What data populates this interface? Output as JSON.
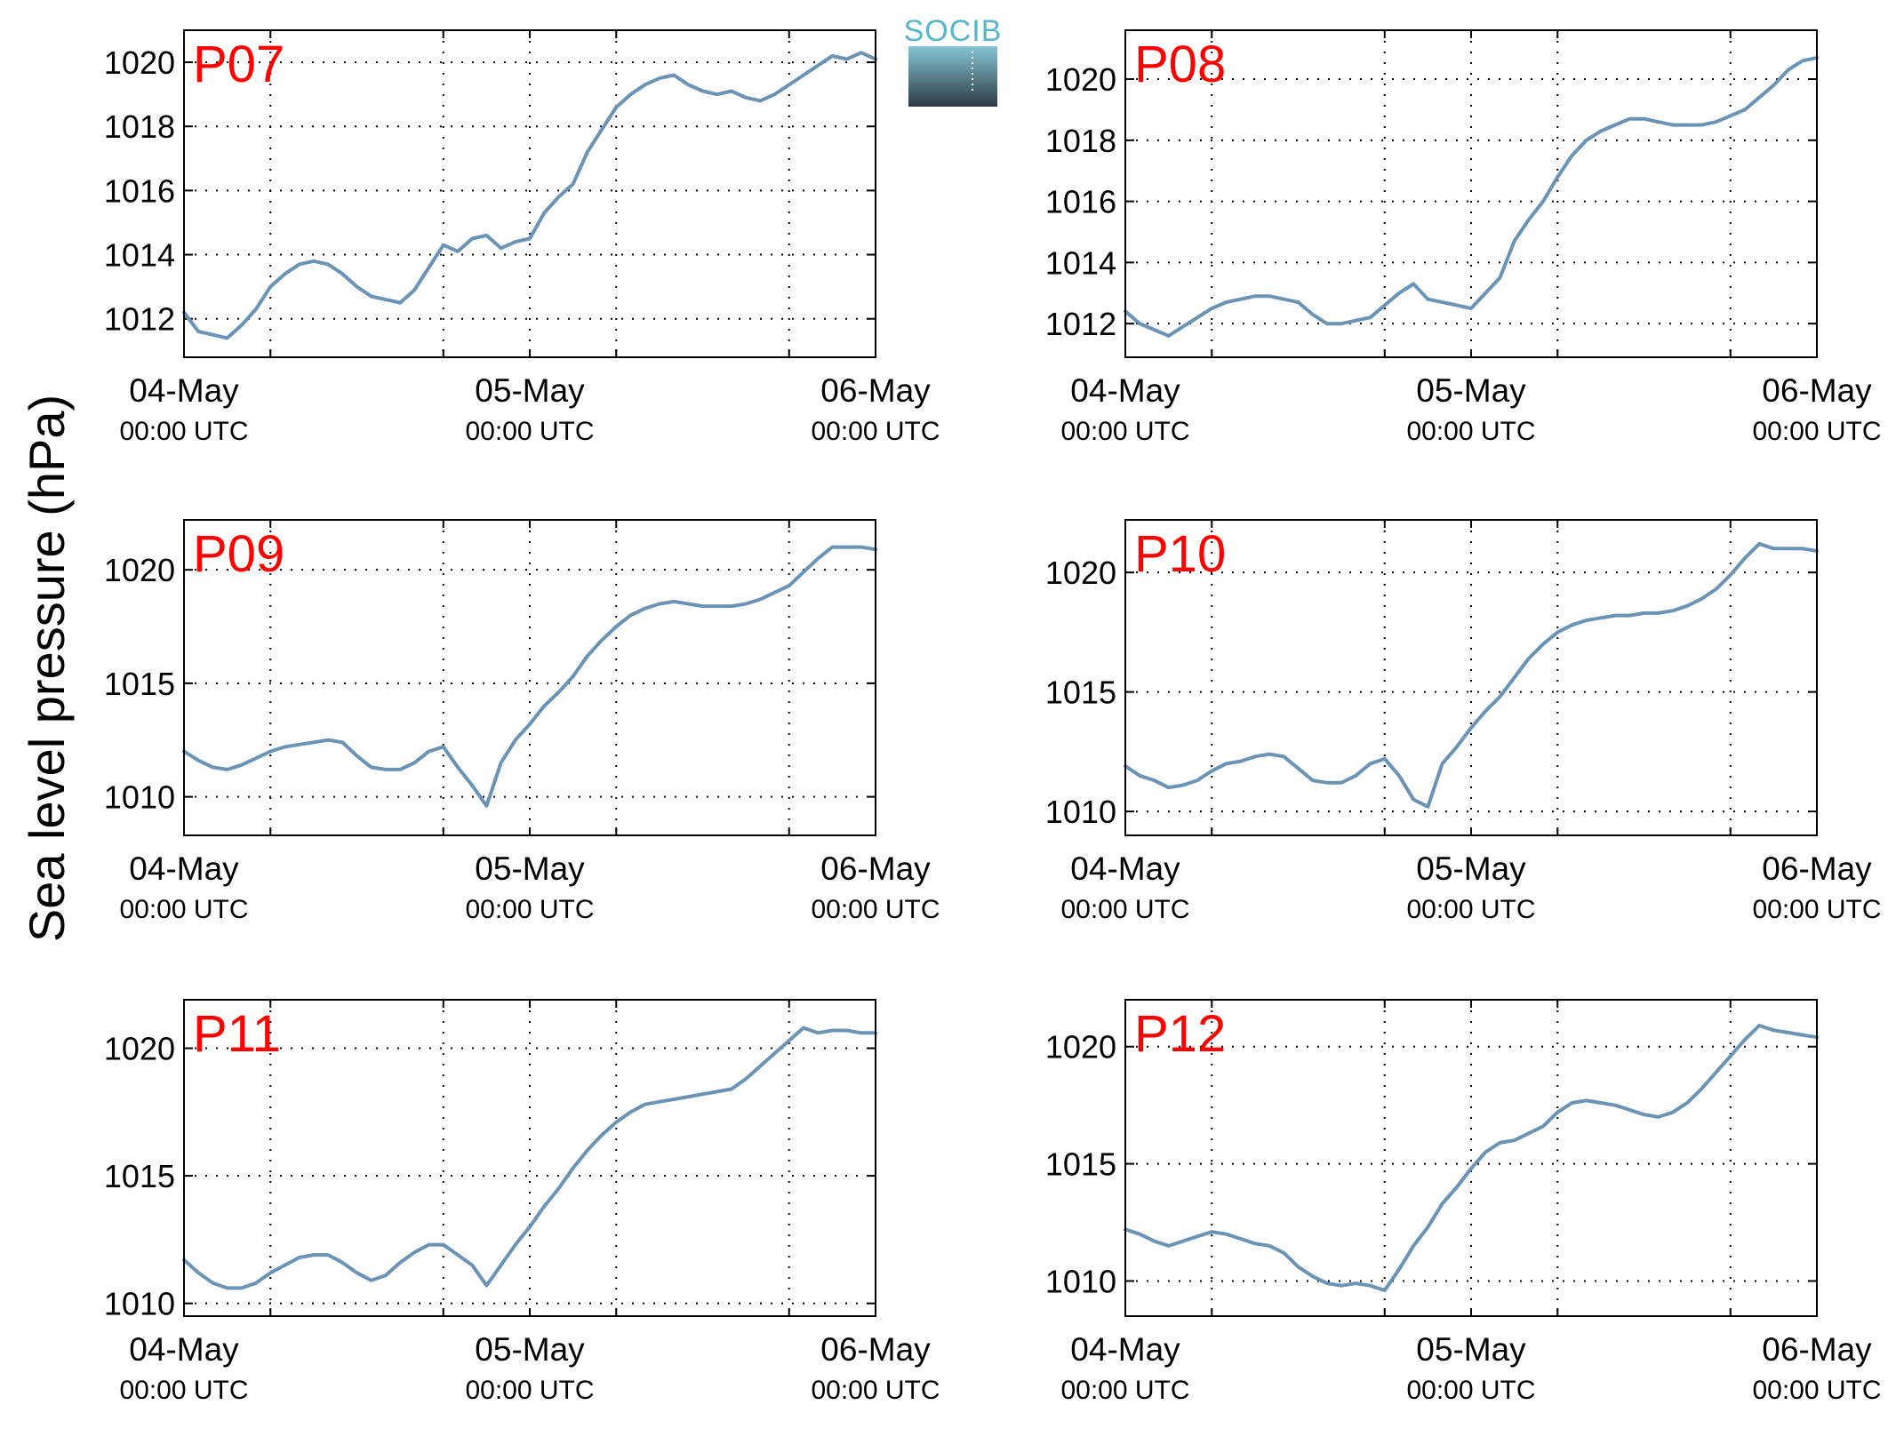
{
  "figure": {
    "ylabel": "Sea level pressure (hPa)",
    "logo_text": "SOCIB",
    "line_color": "#6b93b5",
    "station_label_color": "#ff0000",
    "logo_colors": {
      "text": "#59b5c8",
      "gradient_top": "#86c6d3",
      "gradient_bottom": "#2c3a45"
    }
  },
  "chart_data": [
    {
      "type": "line",
      "title": "P07",
      "x_tick_labels": [
        {
          "date": "04-May",
          "time": "00:00 UTC"
        },
        {
          "date": "05-May",
          "time": "00:00 UTC"
        },
        {
          "date": "06-May",
          "time": "00:00 UTC"
        }
      ],
      "xlim": [
        0,
        48
      ],
      "ylim": [
        1010.8,
        1021.0
      ],
      "yticks": [
        1012,
        1014,
        1016,
        1018,
        1020
      ],
      "grid": true,
      "series": [
        {
          "x": [
            0,
            1,
            2,
            3,
            4,
            5,
            6,
            7,
            8,
            9,
            10,
            11,
            12,
            13,
            14,
            15,
            16,
            17,
            18,
            19,
            20,
            21,
            22,
            23,
            24,
            25,
            26,
            27,
            28,
            29,
            30,
            31,
            32,
            33,
            34,
            35,
            36,
            37,
            38,
            39,
            40,
            41,
            42,
            43,
            44,
            45,
            46,
            47,
            48
          ],
          "y": [
            1012.2,
            1011.6,
            1011.5,
            1011.4,
            1011.8,
            1012.3,
            1013.0,
            1013.4,
            1013.7,
            1013.8,
            1013.7,
            1013.4,
            1013.0,
            1012.7,
            1012.6,
            1012.5,
            1012.9,
            1013.6,
            1014.3,
            1014.1,
            1014.5,
            1014.6,
            1014.2,
            1014.4,
            1014.5,
            1015.3,
            1015.8,
            1016.2,
            1017.2,
            1017.9,
            1018.6,
            1019.0,
            1019.3,
            1019.5,
            1019.6,
            1019.3,
            1019.1,
            1019.0,
            1019.1,
            1018.9,
            1018.8,
            1019.0,
            1019.3,
            1019.6,
            1019.9,
            1020.2,
            1020.1,
            1020.3,
            1020.1
          ]
        }
      ]
    },
    {
      "type": "line",
      "title": "P08",
      "x_tick_labels": [
        {
          "date": "04-May",
          "time": "00:00 UTC"
        },
        {
          "date": "05-May",
          "time": "00:00 UTC"
        },
        {
          "date": "06-May",
          "time": "00:00 UTC"
        }
      ],
      "xlim": [
        0,
        48
      ],
      "ylim": [
        1010.9,
        1021.6
      ],
      "yticks": [
        1012,
        1014,
        1016,
        1018,
        1020
      ],
      "grid": true,
      "series": [
        {
          "x": [
            0,
            1,
            2,
            3,
            4,
            5,
            6,
            7,
            8,
            9,
            10,
            11,
            12,
            13,
            14,
            15,
            16,
            17,
            18,
            19,
            20,
            21,
            22,
            23,
            24,
            25,
            26,
            27,
            28,
            29,
            30,
            31,
            32,
            33,
            34,
            35,
            36,
            37,
            38,
            39,
            40,
            41,
            42,
            43,
            44,
            45,
            46,
            47,
            48
          ],
          "y": [
            1012.4,
            1012.0,
            1011.8,
            1011.6,
            1011.9,
            1012.2,
            1012.5,
            1012.7,
            1012.8,
            1012.9,
            1012.9,
            1012.8,
            1012.7,
            1012.3,
            1012.0,
            1012.0,
            1012.1,
            1012.2,
            1012.6,
            1013.0,
            1013.3,
            1012.8,
            1012.7,
            1012.6,
            1012.5,
            1013.0,
            1013.5,
            1014.7,
            1015.4,
            1016.0,
            1016.8,
            1017.5,
            1018.0,
            1018.3,
            1018.5,
            1018.7,
            1018.7,
            1018.6,
            1018.5,
            1018.5,
            1018.5,
            1018.6,
            1018.8,
            1019.0,
            1019.4,
            1019.8,
            1020.3,
            1020.6,
            1020.7
          ]
        }
      ]
    },
    {
      "type": "line",
      "title": "P09",
      "x_tick_labels": [
        {
          "date": "04-May",
          "time": "00:00 UTC"
        },
        {
          "date": "05-May",
          "time": "00:00 UTC"
        },
        {
          "date": "06-May",
          "time": "00:00 UTC"
        }
      ],
      "xlim": [
        0,
        48
      ],
      "ylim": [
        1008.3,
        1022.2
      ],
      "yticks": [
        1010,
        1015,
        1020
      ],
      "grid": true,
      "series": [
        {
          "x": [
            0,
            1,
            2,
            3,
            4,
            5,
            6,
            7,
            8,
            9,
            10,
            11,
            12,
            13,
            14,
            15,
            16,
            17,
            18,
            19,
            20,
            21,
            22,
            23,
            24,
            25,
            26,
            27,
            28,
            29,
            30,
            31,
            32,
            33,
            34,
            35,
            36,
            37,
            38,
            39,
            40,
            41,
            42,
            43,
            44,
            45,
            46,
            47,
            48
          ],
          "y": [
            1012.0,
            1011.6,
            1011.3,
            1011.2,
            1011.4,
            1011.7,
            1012.0,
            1012.2,
            1012.3,
            1012.4,
            1012.5,
            1012.4,
            1011.8,
            1011.3,
            1011.2,
            1011.2,
            1011.5,
            1012.0,
            1012.2,
            1011.3,
            1010.5,
            1009.6,
            1011.5,
            1012.5,
            1013.2,
            1014.0,
            1014.6,
            1015.3,
            1016.2,
            1016.9,
            1017.5,
            1018.0,
            1018.3,
            1018.5,
            1018.6,
            1018.5,
            1018.4,
            1018.4,
            1018.4,
            1018.5,
            1018.7,
            1019.0,
            1019.3,
            1019.9,
            1020.5,
            1021.0,
            1021.0,
            1021.0,
            1020.9
          ]
        }
      ]
    },
    {
      "type": "line",
      "title": "P10",
      "x_tick_labels": [
        {
          "date": "04-May",
          "time": "00:00 UTC"
        },
        {
          "date": "05-May",
          "time": "00:00 UTC"
        },
        {
          "date": "06-May",
          "time": "00:00 UTC"
        }
      ],
      "xlim": [
        0,
        48
      ],
      "ylim": [
        1009.0,
        1022.2
      ],
      "yticks": [
        1010,
        1015,
        1020
      ],
      "grid": true,
      "series": [
        {
          "x": [
            0,
            1,
            2,
            3,
            4,
            5,
            6,
            7,
            8,
            9,
            10,
            11,
            12,
            13,
            14,
            15,
            16,
            17,
            18,
            19,
            20,
            21,
            22,
            23,
            24,
            25,
            26,
            27,
            28,
            29,
            30,
            31,
            32,
            33,
            34,
            35,
            36,
            37,
            38,
            39,
            40,
            41,
            42,
            43,
            44,
            45,
            46,
            47,
            48
          ],
          "y": [
            1011.9,
            1011.5,
            1011.3,
            1011.0,
            1011.1,
            1011.3,
            1011.7,
            1012.0,
            1012.1,
            1012.3,
            1012.4,
            1012.3,
            1011.8,
            1011.3,
            1011.2,
            1011.2,
            1011.5,
            1012.0,
            1012.2,
            1011.5,
            1010.5,
            1010.2,
            1012.0,
            1012.7,
            1013.5,
            1014.2,
            1014.8,
            1015.6,
            1016.4,
            1017.0,
            1017.5,
            1017.8,
            1018.0,
            1018.1,
            1018.2,
            1018.2,
            1018.3,
            1018.3,
            1018.4,
            1018.6,
            1018.9,
            1019.3,
            1019.9,
            1020.6,
            1021.2,
            1021.0,
            1021.0,
            1021.0,
            1020.9
          ]
        }
      ]
    },
    {
      "type": "line",
      "title": "P11",
      "x_tick_labels": [
        {
          "date": "04-May",
          "time": "00:00 UTC"
        },
        {
          "date": "05-May",
          "time": "00:00 UTC"
        },
        {
          "date": "06-May",
          "time": "00:00 UTC"
        }
      ],
      "xlim": [
        0,
        48
      ],
      "ylim": [
        1009.5,
        1021.9
      ],
      "yticks": [
        1010,
        1015,
        1020
      ],
      "grid": true,
      "series": [
        {
          "x": [
            0,
            1,
            2,
            3,
            4,
            5,
            6,
            7,
            8,
            9,
            10,
            11,
            12,
            13,
            14,
            15,
            16,
            17,
            18,
            19,
            20,
            21,
            22,
            23,
            24,
            25,
            26,
            27,
            28,
            29,
            30,
            31,
            32,
            33,
            34,
            35,
            36,
            37,
            38,
            39,
            40,
            41,
            42,
            43,
            44,
            45,
            46,
            47,
            48
          ],
          "y": [
            1011.7,
            1011.2,
            1010.8,
            1010.6,
            1010.6,
            1010.8,
            1011.2,
            1011.5,
            1011.8,
            1011.9,
            1011.9,
            1011.6,
            1011.2,
            1010.9,
            1011.1,
            1011.6,
            1012.0,
            1012.3,
            1012.3,
            1011.9,
            1011.5,
            1010.7,
            1011.5,
            1012.3,
            1013.0,
            1013.8,
            1014.5,
            1015.3,
            1016.0,
            1016.6,
            1017.1,
            1017.5,
            1017.8,
            1017.9,
            1018.0,
            1018.1,
            1018.2,
            1018.3,
            1018.4,
            1018.8,
            1019.3,
            1019.8,
            1020.3,
            1020.8,
            1020.6,
            1020.7,
            1020.7,
            1020.6,
            1020.6
          ]
        }
      ]
    },
    {
      "type": "line",
      "title": "P12",
      "x_tick_labels": [
        {
          "date": "04-May",
          "time": "00:00 UTC"
        },
        {
          "date": "05-May",
          "time": "00:00 UTC"
        },
        {
          "date": "06-May",
          "time": "00:00 UTC"
        }
      ],
      "xlim": [
        0,
        48
      ],
      "ylim": [
        1008.5,
        1022.0
      ],
      "yticks": [
        1010,
        1015,
        1020
      ],
      "grid": true,
      "series": [
        {
          "x": [
            0,
            1,
            2,
            3,
            4,
            5,
            6,
            7,
            8,
            9,
            10,
            11,
            12,
            13,
            14,
            15,
            16,
            17,
            18,
            19,
            20,
            21,
            22,
            23,
            24,
            25,
            26,
            27,
            28,
            29,
            30,
            31,
            32,
            33,
            34,
            35,
            36,
            37,
            38,
            39,
            40,
            41,
            42,
            43,
            44,
            45,
            46,
            47,
            48
          ],
          "y": [
            1012.2,
            1012.0,
            1011.7,
            1011.5,
            1011.7,
            1011.9,
            1012.1,
            1012.0,
            1011.8,
            1011.6,
            1011.5,
            1011.2,
            1010.6,
            1010.2,
            1009.9,
            1009.8,
            1009.9,
            1009.8,
            1009.6,
            1010.5,
            1011.5,
            1012.3,
            1013.3,
            1014.0,
            1014.8,
            1015.5,
            1015.9,
            1016.0,
            1016.3,
            1016.6,
            1017.2,
            1017.6,
            1017.7,
            1017.6,
            1017.5,
            1017.3,
            1017.1,
            1017.0,
            1017.2,
            1017.6,
            1018.2,
            1018.9,
            1019.6,
            1020.3,
            1020.9,
            1020.7,
            1020.6,
            1020.5,
            1020.4
          ]
        }
      ]
    }
  ]
}
